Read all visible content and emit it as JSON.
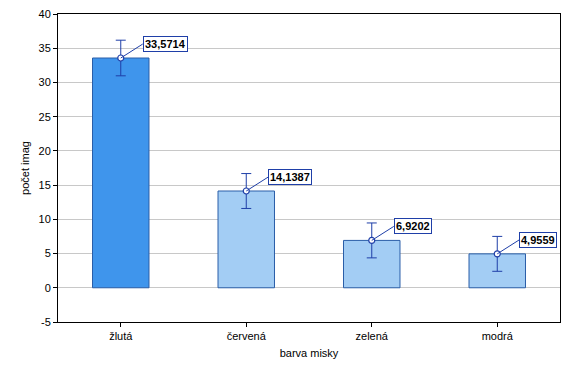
{
  "chart_data": {
    "type": "bar",
    "x_label": "barva misky",
    "y_label": "počet imag",
    "categories": [
      "žlutá",
      "červená",
      "zelená",
      "modrá"
    ],
    "values": [
      33.5714,
      14.1387,
      6.9202,
      4.9559
    ],
    "value_labels": [
      "33,5714",
      "14,1387",
      "6,9202",
      "4,9559"
    ],
    "errors": [
      2.6,
      2.55,
      2.55,
      2.55
    ],
    "colors": [
      "#3f95ec",
      "#a3cdf4",
      "#a3cdf4",
      "#a3cdf4"
    ],
    "ylim": [
      -5,
      40
    ],
    "yticks": [
      -5,
      0,
      5,
      10,
      15,
      20,
      25,
      30,
      35,
      40
    ],
    "grid": true,
    "data_labels": true
  }
}
